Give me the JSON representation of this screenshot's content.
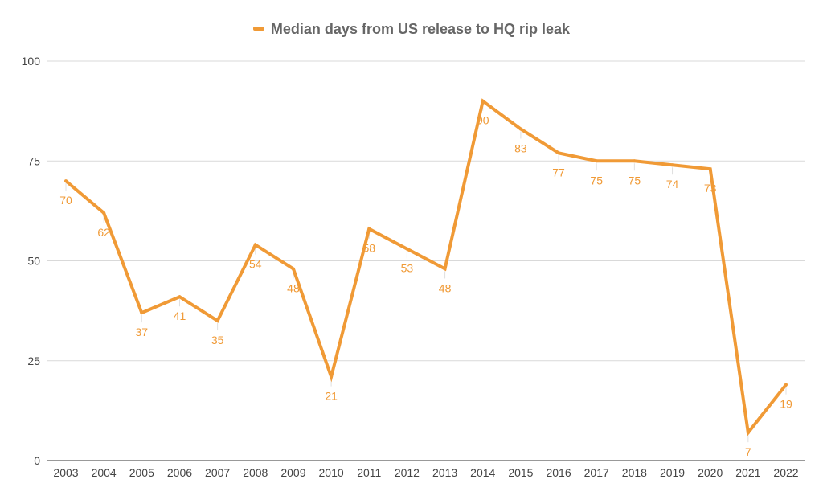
{
  "chart_data": {
    "type": "line",
    "title": "",
    "xlabel": "",
    "ylabel": "",
    "categories": [
      "2003",
      "2004",
      "2005",
      "2006",
      "2007",
      "2008",
      "2009",
      "2010",
      "2011",
      "2012",
      "2013",
      "2014",
      "2015",
      "2016",
      "2017",
      "2018",
      "2019",
      "2020",
      "2021",
      "2022"
    ],
    "series": [
      {
        "name": "Median days from US release to HQ rip leak",
        "values": [
          70,
          62,
          37,
          41,
          35,
          54,
          48,
          21,
          58,
          53,
          48,
          90,
          83,
          77,
          75,
          75,
          74,
          73,
          7,
          19
        ],
        "color": "#f09a36"
      }
    ],
    "ylim": [
      0,
      100
    ],
    "yticks": [
      "0",
      "25",
      "50",
      "75",
      "100"
    ],
    "grid": true,
    "legend_position": "top-center",
    "data_labels": true
  }
}
